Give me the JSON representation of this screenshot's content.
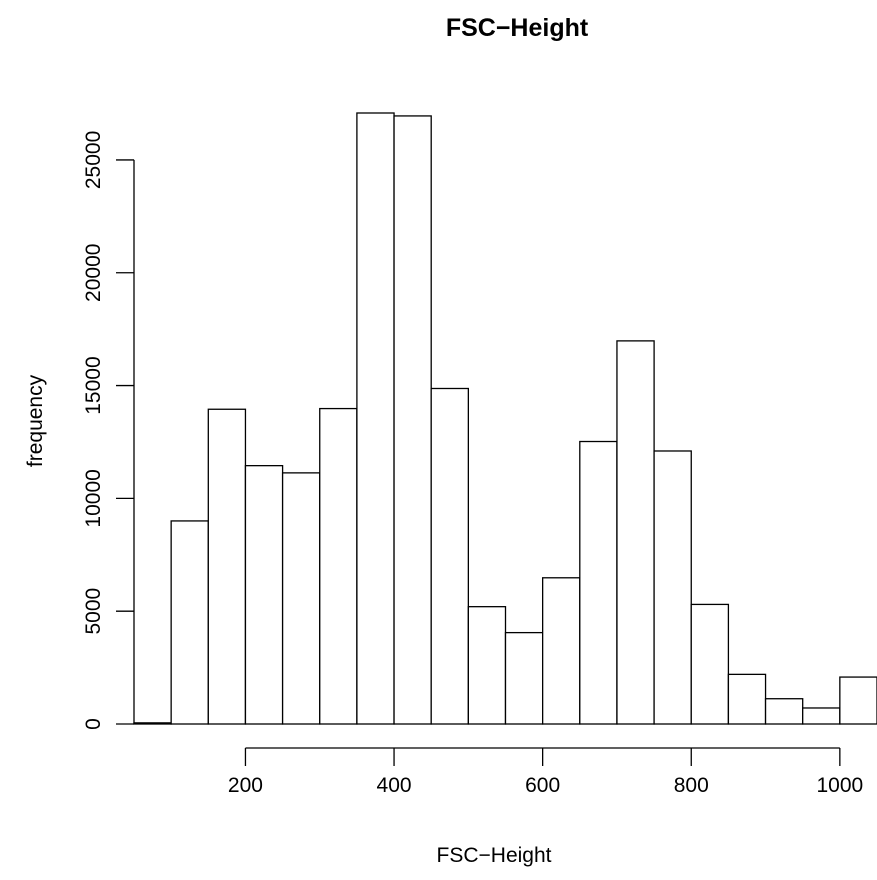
{
  "chart_data": {
    "type": "bar",
    "title": "FSC−Height",
    "xlabel": "FSC−Height",
    "ylabel": "frequency",
    "bin_width": 50,
    "bins": [
      {
        "start": 50,
        "end": 100,
        "value": 50
      },
      {
        "start": 100,
        "end": 150,
        "value": 9000
      },
      {
        "start": 150,
        "end": 200,
        "value": 13950
      },
      {
        "start": 200,
        "end": 250,
        "value": 11450
      },
      {
        "start": 250,
        "end": 300,
        "value": 11130
      },
      {
        "start": 300,
        "end": 350,
        "value": 13980
      },
      {
        "start": 350,
        "end": 400,
        "value": 27080
      },
      {
        "start": 400,
        "end": 450,
        "value": 26950
      },
      {
        "start": 450,
        "end": 500,
        "value": 14870
      },
      {
        "start": 500,
        "end": 550,
        "value": 5200
      },
      {
        "start": 550,
        "end": 600,
        "value": 4050
      },
      {
        "start": 600,
        "end": 650,
        "value": 6480
      },
      {
        "start": 650,
        "end": 700,
        "value": 12520
      },
      {
        "start": 700,
        "end": 750,
        "value": 16980
      },
      {
        "start": 750,
        "end": 800,
        "value": 12100
      },
      {
        "start": 800,
        "end": 850,
        "value": 5300
      },
      {
        "start": 850,
        "end": 900,
        "value": 2200
      },
      {
        "start": 900,
        "end": 950,
        "value": 1120
      },
      {
        "start": 950,
        "end": 1000,
        "value": 710
      },
      {
        "start": 1000,
        "end": 1050,
        "value": 2080
      }
    ],
    "x_ticks": [
      {
        "value": 200,
        "label": "200"
      },
      {
        "value": 400,
        "label": "400"
      },
      {
        "value": 600,
        "label": "600"
      },
      {
        "value": 800,
        "label": "800"
      },
      {
        "value": 1000,
        "label": "1000"
      }
    ],
    "y_ticks": [
      {
        "value": 0,
        "label": "0"
      },
      {
        "value": 5000,
        "label": "5000"
      },
      {
        "value": 10000,
        "label": "10000"
      },
      {
        "value": 15000,
        "label": "15000"
      },
      {
        "value": 20000,
        "label": "20000"
      },
      {
        "value": 25000,
        "label": "25000"
      }
    ],
    "xlim": [
      50,
      1050
    ],
    "ylim": [
      0,
      27080
    ],
    "grid": false,
    "legend": "none",
    "colors": {
      "bar_fill": "#ffffff",
      "bar_stroke": "#000000"
    }
  }
}
